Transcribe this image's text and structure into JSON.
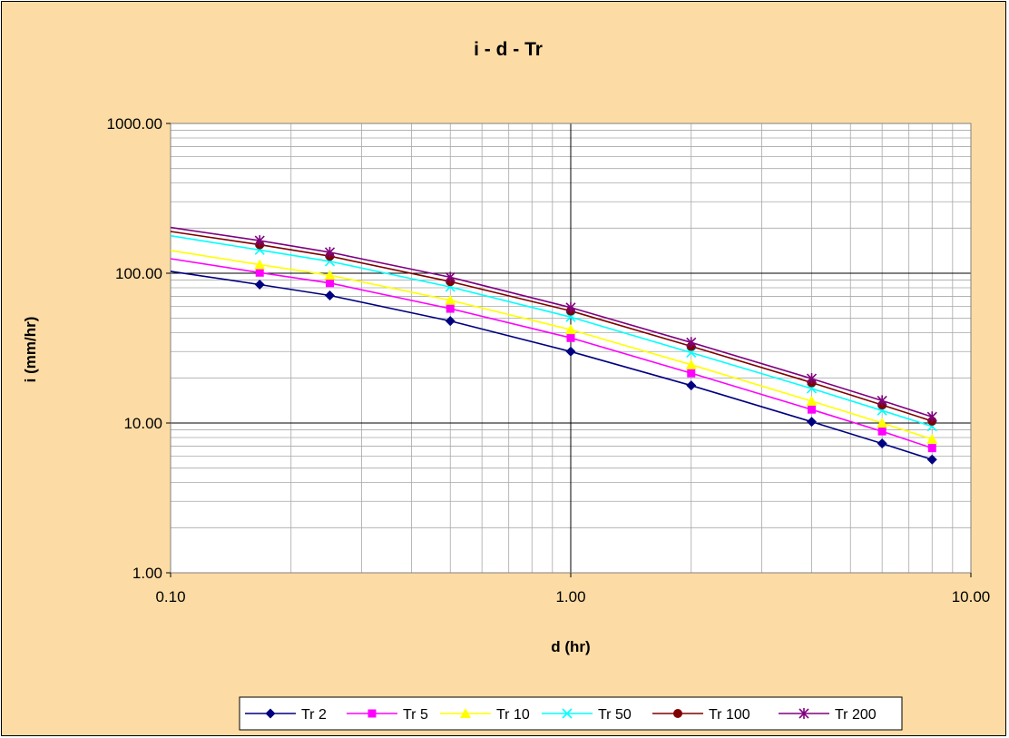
{
  "chart_data": {
    "type": "line",
    "title": "i - d - Tr",
    "xlabel": "d (hr)",
    "ylabel": "i (mm/hr)",
    "x_scale": "log",
    "y_scale": "log",
    "xlim": [
      0.1,
      10
    ],
    "ylim": [
      1,
      1000
    ],
    "x_tick_labels": [
      "0.10",
      "1.00",
      "10.00"
    ],
    "y_tick_labels": [
      "1.00",
      "10.00",
      "100.00",
      "1000.00"
    ],
    "grid": true,
    "legend_position": "bottom",
    "plot_background": "#ffffff",
    "chart_background": "#fcdca4",
    "x": [
      0.167,
      0.25,
      0.5,
      1,
      2,
      4,
      6,
      8
    ],
    "series": [
      {
        "name": "Tr 2",
        "color": "#000080",
        "marker": "diamond",
        "start": 103,
        "values": [
          84,
          71,
          48,
          30,
          17.8,
          10.2,
          7.3,
          5.7
        ]
      },
      {
        "name": "Tr 5",
        "color": "#ff00ff",
        "marker": "square",
        "start": 125,
        "values": [
          101,
          86,
          58,
          37,
          21.5,
          12.3,
          8.8,
          6.8
        ]
      },
      {
        "name": "Tr 10",
        "color": "#ffff00",
        "marker": "triangle",
        "start": 142,
        "values": [
          114,
          97,
          66,
          42,
          24.5,
          14.0,
          10.0,
          7.8
        ]
      },
      {
        "name": "Tr 50",
        "color": "#00ffff",
        "marker": "x",
        "start": 178,
        "values": [
          143,
          120,
          81,
          51,
          29.5,
          17.0,
          12.1,
          9.5
        ]
      },
      {
        "name": "Tr 100",
        "color": "#800000",
        "marker": "circle",
        "start": 190,
        "values": [
          155,
          130,
          88,
          56,
          32.5,
          18.6,
          13.2,
          10.3
        ]
      },
      {
        "name": "Tr 200",
        "color": "#800080",
        "marker": "star",
        "start": 202,
        "values": [
          165,
          138,
          94,
          59,
          34.5,
          19.8,
          14.1,
          11.0
        ]
      }
    ]
  }
}
